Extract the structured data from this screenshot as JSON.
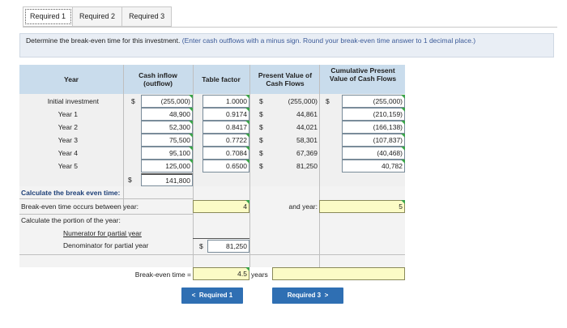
{
  "tabs": [
    {
      "label": "Required 1"
    },
    {
      "label": "Required 2"
    },
    {
      "label": "Required 3"
    }
  ],
  "instructions": {
    "text": "Determine the break-even time for this investment.",
    "note": " (Enter cash outflows with a minus sign. Round your break-even time answer to 1 decimal place.)"
  },
  "headers": {
    "year": "Year",
    "cash_flow": "Cash inflow (outflow)",
    "table_factor": "Table factor",
    "pv": "Present Value of Cash Flows",
    "cumulative": "Cumulative Present Value of Cash Flows"
  },
  "currency": "$",
  "rows": [
    {
      "year": "Initial investment",
      "cash_flow": "(255,000)",
      "factor": "1.0000",
      "pv": "(255,000)",
      "cumulative": "(255,000)"
    },
    {
      "year": "Year 1",
      "cash_flow": "48,900",
      "factor": "0.9174",
      "pv": "44,861",
      "cumulative": "(210,159)"
    },
    {
      "year": "Year 2",
      "cash_flow": "52,300",
      "factor": "0.8417",
      "pv": "44,021",
      "cumulative": "(166,138)"
    },
    {
      "year": "Year 3",
      "cash_flow": "75,500",
      "factor": "0.7722",
      "pv": "58,301",
      "cumulative": "(107,837)"
    },
    {
      "year": "Year 4",
      "cash_flow": "95,100",
      "factor": "0.7084",
      "pv": "67,369",
      "cumulative": "(40,468)"
    },
    {
      "year": "Year 5",
      "cash_flow": "125,000",
      "factor": "0.6500",
      "pv": "81,250",
      "cumulative": "40,782"
    }
  ],
  "total": {
    "cash_flow": "141,800"
  },
  "breakeven": {
    "section_title": "Calculate the break even time:",
    "occurs_label": "Break-even time occurs between year:",
    "year_from": "4",
    "and_label": "and year:",
    "year_to": "5",
    "portion_label": "Calculate the portion of the year:",
    "numerator_label": "Numerator for partial year",
    "denominator_label": "Denominator for partial year",
    "denominator_value": "81,250",
    "time_label": "Break-even time =",
    "time_value": "4.5",
    "time_unit": "years"
  },
  "nav": {
    "prev_label": "Required 1",
    "next_label": "Required 3",
    "prev_arrow": "<",
    "next_arrow": ">"
  },
  "colors": {
    "header_bg": "#c9dcec",
    "row_bg": "#f0f0f0",
    "nav_blue": "#2f6fb3",
    "input_yellow": "#fbfbc6"
  }
}
